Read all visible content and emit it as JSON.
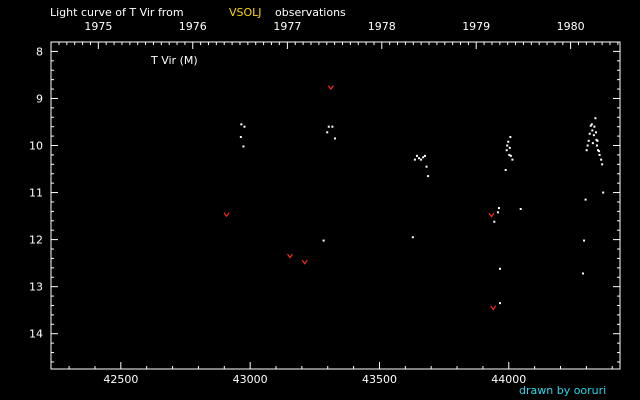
{
  "title": {
    "prefix": "Light curve of T Vir from",
    "highlight": "VSOLJ",
    "suffix": "observations"
  },
  "series_label": "T Vir (M)",
  "credit": "drawn by ooruri",
  "colors": {
    "background": "#000000",
    "axis": "#ffffff",
    "observation": "#ffffff",
    "fainter_than": "#ff2a1a",
    "highlight": "#ffd700",
    "credit": "#27d8e8"
  },
  "chart_data": {
    "type": "scatter",
    "title": "Light curve of T Vir from VSOLJ observations",
    "xlabel": "",
    "ylabel": "",
    "xlim": [
      42230,
      44430
    ],
    "ylim": [
      14.75,
      7.8
    ],
    "y_inverted": true,
    "x_ticks": [
      42500,
      43000,
      43500,
      44000
    ],
    "y_ticks": [
      8,
      9,
      10,
      11,
      12,
      13,
      14
    ],
    "year_ticks": [
      {
        "label": "1975",
        "jd": 42413
      },
      {
        "label": "1976",
        "jd": 42778
      },
      {
        "label": "1977",
        "jd": 43144
      },
      {
        "label": "1978",
        "jd": 43509
      },
      {
        "label": "1979",
        "jd": 43874
      },
      {
        "label": "1980",
        "jd": 44239
      }
    ],
    "series": [
      {
        "name": "T Vir (M)",
        "marker": "dot",
        "points": [
          [
            42966,
            9.55
          ],
          [
            42964,
            9.82
          ],
          [
            42974,
            10.02
          ],
          [
            42978,
            9.6
          ],
          [
            43284,
            12.02
          ],
          [
            43298,
            9.72
          ],
          [
            43304,
            9.6
          ],
          [
            43318,
            9.6
          ],
          [
            43328,
            9.85
          ],
          [
            43629,
            11.95
          ],
          [
            43637,
            10.3
          ],
          [
            43645,
            10.22
          ],
          [
            43653,
            10.27
          ],
          [
            43661,
            10.3
          ],
          [
            43669,
            10.25
          ],
          [
            43676,
            10.22
          ],
          [
            43682,
            10.45
          ],
          [
            43688,
            10.65
          ],
          [
            43944,
            11.62
          ],
          [
            43958,
            11.42
          ],
          [
            43962,
            11.33
          ],
          [
            43966,
            12.62
          ],
          [
            43966,
            13.35
          ],
          [
            43988,
            10.52
          ],
          [
            43992,
            10.1
          ],
          [
            43994,
            10.0
          ],
          [
            43998,
            9.92
          ],
          [
            44002,
            10.2
          ],
          [
            44004,
            10.05
          ],
          [
            44006,
            9.82
          ],
          [
            44008,
            10.22
          ],
          [
            44014,
            10.3
          ],
          [
            44046,
            11.35
          ],
          [
            44287,
            12.72
          ],
          [
            44291,
            12.02
          ],
          [
            44297,
            11.15
          ],
          [
            44301,
            10.1
          ],
          [
            44305,
            10.0
          ],
          [
            44309,
            9.9
          ],
          [
            44313,
            9.75
          ],
          [
            44317,
            9.58
          ],
          [
            44321,
            9.55
          ],
          [
            44323,
            9.68
          ],
          [
            44325,
            9.95
          ],
          [
            44329,
            9.78
          ],
          [
            44331,
            9.6
          ],
          [
            44335,
            9.42
          ],
          [
            44337,
            9.72
          ],
          [
            44339,
            9.88
          ],
          [
            44341,
            10.0
          ],
          [
            44343,
            9.9
          ],
          [
            44345,
            10.1
          ],
          [
            44349,
            10.12
          ],
          [
            44351,
            10.2
          ],
          [
            44357,
            10.3
          ],
          [
            44361,
            10.4
          ],
          [
            44365,
            11.0
          ]
        ]
      },
      {
        "name": "fainter than",
        "marker": "v",
        "points": [
          [
            42909,
            11.47
          ],
          [
            43154,
            12.35
          ],
          [
            43211,
            12.48
          ],
          [
            43312,
            8.77
          ],
          [
            43933,
            11.48
          ],
          [
            43940,
            13.45
          ]
        ]
      }
    ]
  }
}
